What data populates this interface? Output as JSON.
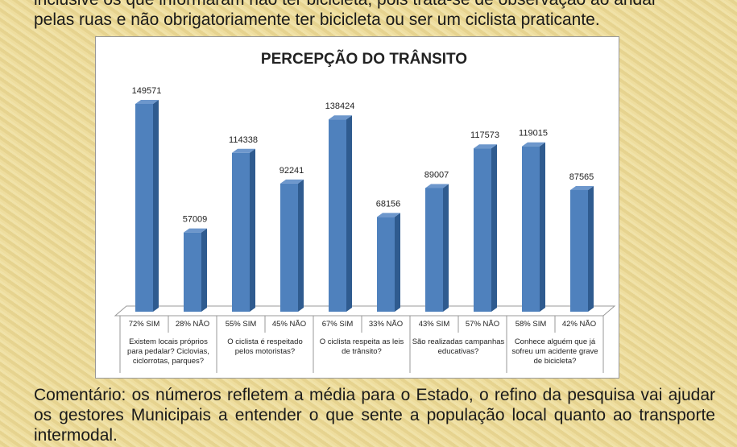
{
  "header_lines": [
    "inclusive os que informaram não ter bicicleta, pois trata-se de observação ao andar",
    "pelas ruas e não obrigatoriamente ter bicicleta ou ser um ciclista praticante."
  ],
  "chart_data": {
    "type": "bar",
    "title": "PERCEPÇÃO DO TRÂNSITO",
    "categories": [
      "72% SIM",
      "28% NÃO",
      "55% SIM",
      "45% NÃO",
      "67% SIM",
      "33% NÃO",
      "43% SIM",
      "57% NÃO",
      "58% SIM",
      "42% NÃO"
    ],
    "groups": [
      "Existem locais próprios para pedalar? Ciclovias, ciclorrotas, parques?",
      "O ciclista é respeitado pelos motoristas?",
      "O ciclista respeita as leis de trânsito?",
      "São realizadas campanhas educativas?",
      "Conhece alguém que já sofreu um acidente grave de bicicleta?"
    ],
    "values": [
      149571,
      57009,
      114338,
      92241,
      138424,
      68156,
      89007,
      117573,
      119015,
      87565
    ],
    "color": "#4f81bd"
  },
  "comment": "Comentário: os números refletem a média para o Estado, o refino da pesquisa vai ajudar os gestores Municipais a entender o que sente a população local quanto ao transporte intermodal."
}
